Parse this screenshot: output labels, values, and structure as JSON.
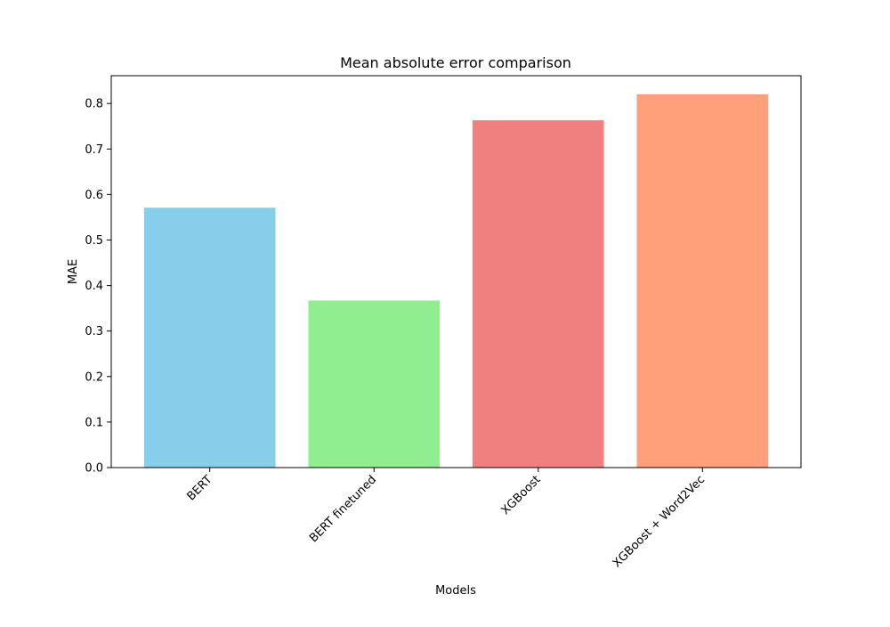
{
  "chart_data": {
    "type": "bar",
    "title": "Mean absolute error comparison",
    "xlabel": "Models",
    "ylabel": "MAE",
    "categories": [
      "BERT",
      "BERT finetuned",
      "XGBoost",
      "XGBoost + Word2Vec"
    ],
    "values": [
      0.571,
      0.367,
      0.763,
      0.82
    ],
    "colors": [
      "#87ceeb",
      "#90ee90",
      "#f08080",
      "#ffa07a"
    ],
    "ylim": [
      0,
      0.861
    ],
    "yticks": [
      0.0,
      0.1,
      0.2,
      0.3,
      0.4,
      0.5,
      0.6,
      0.7,
      0.8
    ],
    "ytick_labels": [
      "0.0",
      "0.1",
      "0.2",
      "0.3",
      "0.4",
      "0.5",
      "0.6",
      "0.7",
      "0.8"
    ],
    "grid": false,
    "legend": "none",
    "xtick_rotation": 45
  }
}
